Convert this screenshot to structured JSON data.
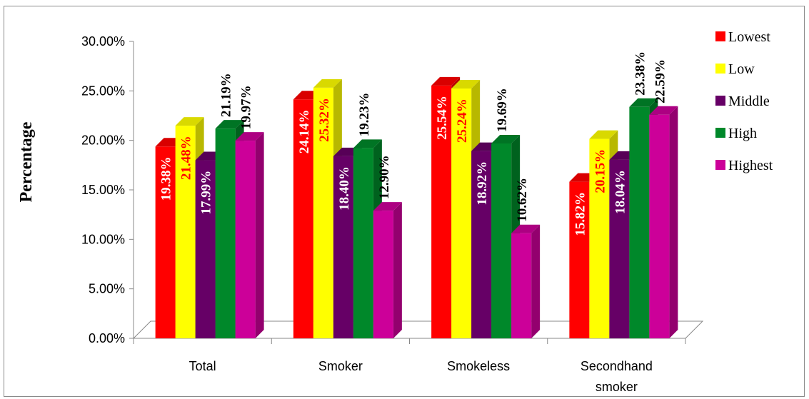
{
  "chart_data": {
    "type": "bar",
    "style": "3d-clustered-column",
    "ylabel": "Percentage",
    "xlabel": "",
    "ylim": [
      0,
      30
    ],
    "yticks": [
      "0.00%",
      "5.00%",
      "10.00%",
      "15.00%",
      "20.00%",
      "25.00%",
      "30.00%"
    ],
    "categories": [
      "Total",
      "Smoker",
      "Smokeless",
      "Secondhand smoker"
    ],
    "category_lines": [
      [
        "Total"
      ],
      [
        "Smoker"
      ],
      [
        "Smokeless"
      ],
      [
        "Secondhand",
        "smoker"
      ]
    ],
    "legend_position": "right",
    "grid": false,
    "series": [
      {
        "name": "Lowest",
        "color": "#ff0000",
        "values": [
          19.38,
          24.14,
          25.54,
          15.82
        ],
        "labels": [
          "19.38%",
          "24.14%",
          "25.54%",
          "15.82%"
        ],
        "label_color": "#ffffff",
        "label_inside": true
      },
      {
        "name": "Low",
        "color": "#ffff00",
        "values": [
          21.48,
          25.32,
          25.24,
          20.15
        ],
        "labels": [
          "21.48%",
          "25.32%",
          "25.24%",
          "20.15%"
        ],
        "label_color": "#ff0000",
        "label_inside": true
      },
      {
        "name": "Middle",
        "color": "#660066",
        "values": [
          17.99,
          18.4,
          18.92,
          18.04
        ],
        "labels": [
          "17.99%",
          "18.40%",
          "18.92%",
          "18.04%"
        ],
        "label_color": "#ffffff",
        "label_inside": true
      },
      {
        "name": "High",
        "color": "#00882a",
        "values": [
          21.19,
          19.23,
          19.69,
          23.38
        ],
        "labels": [
          "21.19%",
          "19.23%",
          "19.69%",
          "23.38%"
        ],
        "label_color": "#000000",
        "label_inside": false
      },
      {
        "name": "Highest",
        "color": "#cc0099",
        "values": [
          19.97,
          12.9,
          10.62,
          22.59
        ],
        "labels": [
          "19.97%",
          "12.90%",
          "10.62%",
          "22.59%"
        ],
        "label_color": "#000000",
        "label_inside": false
      }
    ]
  }
}
